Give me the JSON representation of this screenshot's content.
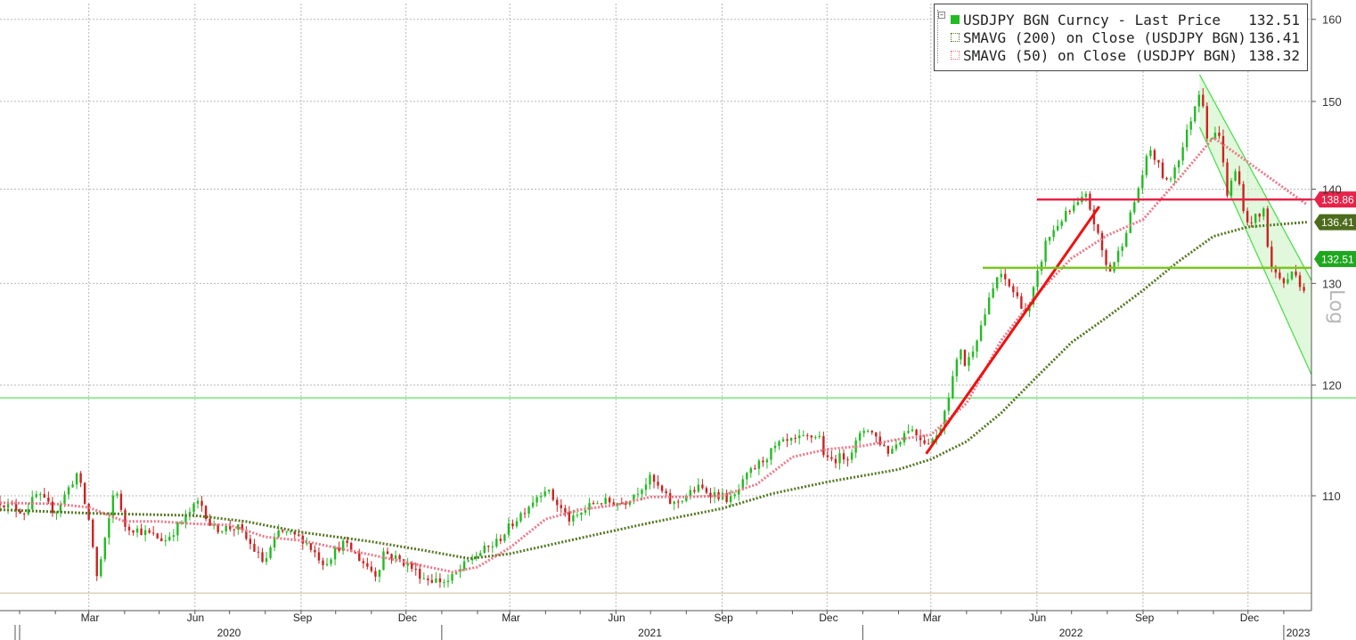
{
  "chart_data": {
    "type": "line",
    "title": "",
    "y_scale": "log",
    "y_scale_label": "Log",
    "ylim": [
      100.5,
      162
    ],
    "y_ticks": [
      110,
      120,
      130,
      140,
      150,
      160
    ],
    "grid": true,
    "legend_placement": "top-right",
    "legend": [
      {
        "name": "USDJPY BGN Curncy - Last Price",
        "value": "132.51",
        "color": "#22bb22"
      },
      {
        "name": "SMAVG (200)  on Close (USDJPY BGN)",
        "value": "136.41",
        "color": "#557722"
      },
      {
        "name": "SMAVG (50)  on Close (USDJPY BGN)",
        "value": "138.32",
        "color": "#ee7788"
      }
    ],
    "x_months": [
      "Mar",
      "Jun",
      "Sep",
      "Dec",
      "Mar",
      "Jun",
      "Sep",
      "Dec",
      "Mar",
      "Jun",
      "Sep",
      "Dec"
    ],
    "x_years": [
      "2020",
      "2021",
      "2022",
      "2023"
    ],
    "price_tags": [
      {
        "label": "138.86",
        "value": 138.86,
        "color": "#e8234a"
      },
      {
        "label": "136.41",
        "value": 136.41,
        "color": "#4d6b1c"
      },
      {
        "label": "132.51",
        "value": 132.51,
        "color": "#1fa81f"
      }
    ],
    "x_start": "2019-12-15",
    "x_end": "2023-01-25",
    "price_series": [
      [
        "2019-12-15",
        109.5
      ],
      [
        "2020-01-05",
        108.6
      ],
      [
        "2020-01-16",
        110.1
      ],
      [
        "2020-02-01",
        108.6
      ],
      [
        "2020-02-20",
        112.0
      ],
      [
        "2020-03-02",
        107.5
      ],
      [
        "2020-03-09",
        102.5
      ],
      [
        "2020-03-12",
        105.0
      ],
      [
        "2020-03-16",
        106.5
      ],
      [
        "2020-03-24",
        111.2
      ],
      [
        "2020-03-31",
        107.5
      ],
      [
        "2020-04-15",
        107.0
      ],
      [
        "2020-05-06",
        106.2
      ],
      [
        "2020-05-20",
        107.7
      ],
      [
        "2020-06-05",
        109.6
      ],
      [
        "2020-06-16",
        107.2
      ],
      [
        "2020-07-08",
        107.3
      ],
      [
        "2020-07-31",
        104.3
      ],
      [
        "2020-08-13",
        107.0
      ],
      [
        "2020-09-03",
        106.3
      ],
      [
        "2020-09-21",
        104.3
      ],
      [
        "2020-10-07",
        106.0
      ],
      [
        "2020-11-06",
        103.3
      ],
      [
        "2020-11-11",
        105.3
      ],
      [
        "2020-12-01",
        104.3
      ],
      [
        "2020-12-17",
        103.1
      ],
      [
        "2021-01-06",
        102.8
      ],
      [
        "2021-01-29",
        104.9
      ],
      [
        "2021-02-17",
        106.0
      ],
      [
        "2021-03-10",
        108.4
      ],
      [
        "2021-03-31",
        110.7
      ],
      [
        "2021-04-23",
        107.8
      ],
      [
        "2021-05-14",
        109.5
      ],
      [
        "2021-06-08",
        109.4
      ],
      [
        "2021-07-01",
        111.5
      ],
      [
        "2021-07-20",
        109.2
      ],
      [
        "2021-08-11",
        110.7
      ],
      [
        "2021-09-10",
        109.6
      ],
      [
        "2021-09-24",
        111.9
      ],
      [
        "2021-10-20",
        114.5
      ],
      [
        "2021-11-24",
        115.4
      ],
      [
        "2021-11-30",
        113.0
      ],
      [
        "2021-12-20",
        113.6
      ],
      [
        "2022-01-04",
        116.2
      ],
      [
        "2022-01-24",
        113.8
      ],
      [
        "2022-02-10",
        116.1
      ],
      [
        "2022-02-24",
        114.8
      ],
      [
        "2022-03-07",
        115.2
      ],
      [
        "2022-03-15",
        118.6
      ],
      [
        "2022-03-28",
        124.0
      ],
      [
        "2022-03-31",
        121.6
      ],
      [
        "2022-04-13",
        125.6
      ],
      [
        "2022-04-28",
        130.8
      ],
      [
        "2022-05-05",
        130.3
      ],
      [
        "2022-05-24",
        126.9
      ],
      [
        "2022-06-09",
        134.4
      ],
      [
        "2022-06-22",
        136.7
      ],
      [
        "2022-07-14",
        139.2
      ],
      [
        "2022-08-02",
        131.0
      ],
      [
        "2022-08-12",
        133.5
      ],
      [
        "2022-08-22",
        137.5
      ],
      [
        "2022-09-07",
        144.5
      ],
      [
        "2022-09-22",
        140.5
      ],
      [
        "2022-10-05",
        144.5
      ],
      [
        "2022-10-21",
        151.9
      ],
      [
        "2022-10-27",
        145.6
      ],
      [
        "2022-11-08",
        146.5
      ],
      [
        "2022-11-11",
        138.9
      ],
      [
        "2022-11-21",
        142.2
      ],
      [
        "2022-11-30",
        136.0
      ],
      [
        "2022-12-06",
        137.1
      ],
      [
        "2022-12-09",
        136.6
      ],
      [
        "2022-12-15",
        137.8
      ],
      [
        "2022-12-20",
        131.7
      ],
      [
        "2023-01-03",
        129.8
      ],
      [
        "2023-01-10",
        131.8
      ],
      [
        "2023-01-18",
        128.8
      ],
      [
        "2023-01-21",
        132.51
      ]
    ],
    "sma200_series": [
      [
        "2019-12-15",
        108.8
      ],
      [
        "2020-03-01",
        108.5
      ],
      [
        "2020-06-01",
        108.3
      ],
      [
        "2020-07-15",
        107.8
      ],
      [
        "2020-09-01",
        106.9
      ],
      [
        "2020-11-01",
        106.1
      ],
      [
        "2020-12-15",
        105.4
      ],
      [
        "2021-01-25",
        104.7
      ],
      [
        "2021-03-01",
        105.1
      ],
      [
        "2021-05-01",
        106.4
      ],
      [
        "2021-07-01",
        107.7
      ],
      [
        "2021-09-01",
        108.9
      ],
      [
        "2021-10-15",
        110.2
      ],
      [
        "2021-12-01",
        111.2
      ],
      [
        "2022-02-01",
        112.3
      ],
      [
        "2022-03-01",
        113.2
      ],
      [
        "2022-04-01",
        114.8
      ],
      [
        "2022-05-01",
        117.4
      ],
      [
        "2022-06-01",
        120.8
      ],
      [
        "2022-07-01",
        124.1
      ],
      [
        "2022-08-01",
        126.6
      ],
      [
        "2022-09-01",
        129.3
      ],
      [
        "2022-10-01",
        132.2
      ],
      [
        "2022-11-01",
        134.9
      ],
      [
        "2022-12-01",
        135.9
      ],
      [
        "2023-01-21",
        136.41
      ]
    ],
    "sma50_series": [
      [
        "2019-12-15",
        109.4
      ],
      [
        "2020-02-01",
        109.3
      ],
      [
        "2020-03-01",
        109.0
      ],
      [
        "2020-04-01",
        107.8
      ],
      [
        "2020-05-01",
        107.8
      ],
      [
        "2020-06-01",
        107.6
      ],
      [
        "2020-07-01",
        107.5
      ],
      [
        "2020-08-01",
        106.5
      ],
      [
        "2020-09-01",
        106.2
      ],
      [
        "2020-10-01",
        105.6
      ],
      [
        "2020-11-01",
        105.0
      ],
      [
        "2020-12-01",
        104.4
      ],
      [
        "2021-01-10",
        103.6
      ],
      [
        "2021-02-01",
        104.0
      ],
      [
        "2021-03-01",
        105.6
      ],
      [
        "2021-04-01",
        108.0
      ],
      [
        "2021-05-01",
        108.8
      ],
      [
        "2021-06-01",
        109.2
      ],
      [
        "2021-07-01",
        109.9
      ],
      [
        "2021-08-01",
        109.9
      ],
      [
        "2021-09-01",
        110.0
      ],
      [
        "2021-10-01",
        111.0
      ],
      [
        "2021-11-01",
        113.4
      ],
      [
        "2021-12-01",
        114.1
      ],
      [
        "2022-01-01",
        114.4
      ],
      [
        "2022-02-01",
        115.0
      ],
      [
        "2022-03-01",
        115.4
      ],
      [
        "2022-04-01",
        118.3
      ],
      [
        "2022-05-01",
        124.3
      ],
      [
        "2022-06-01",
        128.9
      ],
      [
        "2022-07-01",
        132.6
      ],
      [
        "2022-08-01",
        135.0
      ],
      [
        "2022-09-01",
        136.7
      ],
      [
        "2022-10-01",
        141.0
      ],
      [
        "2022-11-01",
        145.8
      ],
      [
        "2022-12-01",
        143.0
      ],
      [
        "2023-01-21",
        138.32
      ]
    ],
    "annotations": {
      "red_trendline": [
        [
          "2022-02-25",
          113.7
        ],
        [
          "2022-07-25",
          138.1
        ]
      ],
      "horizontal_resistance": {
        "value": 138.86,
        "from": "2022-06-01",
        "color": "#e8234a"
      },
      "horizontal_support": {
        "value": 131.6,
        "from": "2022-04-15",
        "color": "#7cc41f"
      },
      "long_support": {
        "value": 118.8,
        "color": "#33dd33"
      },
      "low_line": {
        "value": 101.9,
        "color": "#c8b89a"
      },
      "channel_upper": [
        [
          "2022-10-20",
          153.2
        ],
        [
          "2023-01-25",
          130.3
        ]
      ],
      "channel_lower": [
        [
          "2022-10-20",
          147.0
        ],
        [
          "2023-01-25",
          121.0
        ]
      ]
    }
  }
}
